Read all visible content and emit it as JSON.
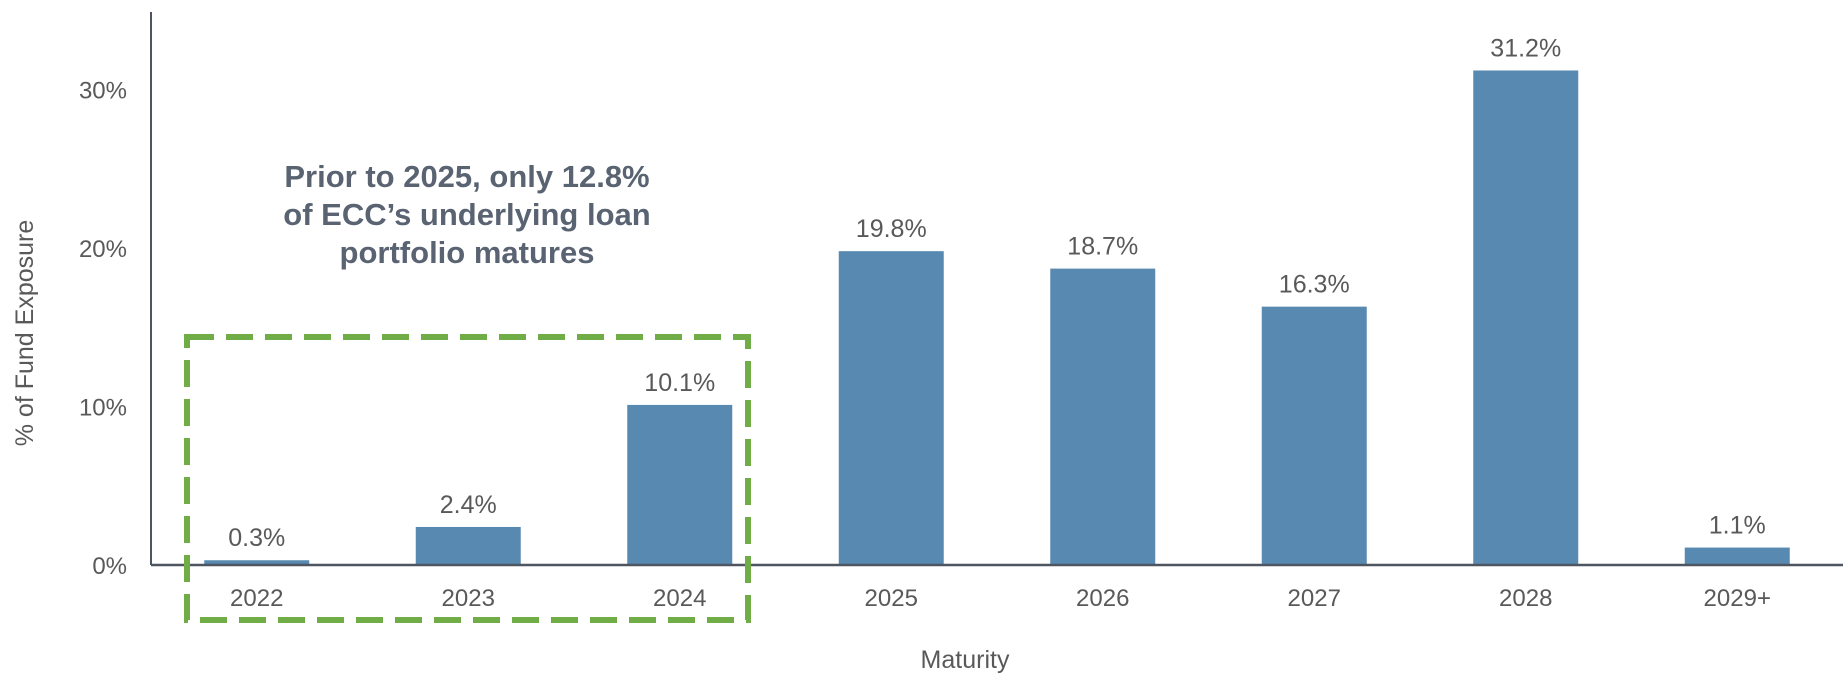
{
  "chart_data": {
    "type": "bar",
    "categories": [
      "2022",
      "2023",
      "2024",
      "2025",
      "2026",
      "2027",
      "2028",
      "2029+"
    ],
    "values": [
      0.3,
      2.4,
      10.1,
      19.8,
      18.7,
      16.3,
      31.2,
      1.1
    ],
    "value_labels": [
      "0.3%",
      "2.4%",
      "10.1%",
      "19.8%",
      "18.7%",
      "16.3%",
      "31.2%",
      "1.1%"
    ],
    "y_ticks": [
      0,
      10,
      20,
      30
    ],
    "y_tick_labels": [
      "0%",
      "10%",
      "20%",
      "30%"
    ],
    "ylim": [
      0,
      35
    ],
    "xlabel": "Maturity",
    "ylabel": "% of Fund Exposure",
    "annotation": {
      "lines": [
        "Prior to 2025, only 12.8%",
        "of ECC’s underlying loan",
        "portfolio matures"
      ],
      "highlighted_categories": [
        "2022",
        "2023",
        "2024"
      ]
    },
    "grid": false,
    "legend": "none",
    "colors": {
      "bar": "#5889B0",
      "axis": "#4D5561",
      "text": "#595959",
      "annotation_text": "#596372",
      "highlight_box": "#70AD47"
    }
  }
}
